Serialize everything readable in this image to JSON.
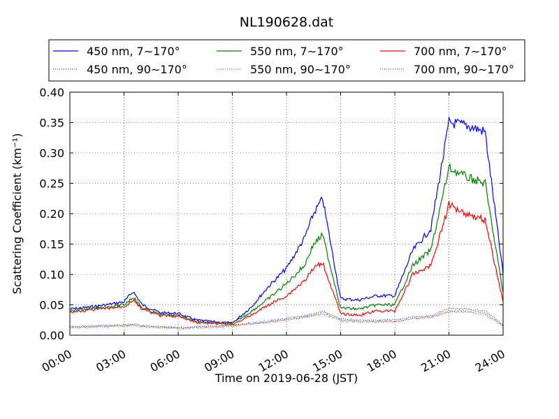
{
  "chart_data": {
    "type": "line",
    "title": "NL190628.dat",
    "xlabel": "Time on 2019-06-28 (JST)",
    "ylabel": "Scattering Coefficient (km⁻¹)",
    "ylim": [
      0,
      0.4
    ],
    "xlim": [
      "00:00",
      "24:00"
    ],
    "grid": true,
    "legend_position": "top",
    "x_ticks": [
      "00:00",
      "03:00",
      "06:00",
      "09:00",
      "12:00",
      "15:00",
      "18:00",
      "21:00",
      "24:00"
    ],
    "y_ticks": [
      "0.00",
      "0.05",
      "0.10",
      "0.15",
      "0.20",
      "0.25",
      "0.30",
      "0.35",
      "0.40"
    ],
    "x": [
      "00:00",
      "01:00",
      "02:00",
      "03:00",
      "03:30",
      "04:00",
      "05:00",
      "06:00",
      "06:30",
      "07:00",
      "08:00",
      "09:00",
      "10:00",
      "11:00",
      "12:00",
      "13:00",
      "13:30",
      "14:00",
      "15:00",
      "16:00",
      "17:00",
      "18:00",
      "19:00",
      "20:00",
      "21:00",
      "22:00",
      "23:00",
      "24:00"
    ],
    "series": [
      {
        "name": "450 nm, 7∼170°",
        "color": "#0000ff",
        "style": "solid",
        "values": [
          0.043,
          0.046,
          0.05,
          0.055,
          0.072,
          0.05,
          0.037,
          0.036,
          0.03,
          0.025,
          0.022,
          0.02,
          0.045,
          0.08,
          0.11,
          0.16,
          0.2,
          0.225,
          0.06,
          0.058,
          0.065,
          0.065,
          0.14,
          0.175,
          0.35,
          0.345,
          0.335,
          0.1
        ]
      },
      {
        "name": "450 nm, 90∼170°",
        "color": "#0000ff",
        "style": "dotted",
        "values": [
          0.014,
          0.015,
          0.016,
          0.017,
          0.018,
          0.016,
          0.014,
          0.013,
          0.013,
          0.014,
          0.015,
          0.017,
          0.02,
          0.023,
          0.028,
          0.032,
          0.035,
          0.04,
          0.027,
          0.025,
          0.025,
          0.025,
          0.03,
          0.032,
          0.044,
          0.043,
          0.04,
          0.018
        ]
      },
      {
        "name": "550 nm, 7∼170°",
        "color": "#008000",
        "style": "solid",
        "values": [
          0.04,
          0.043,
          0.046,
          0.05,
          0.063,
          0.045,
          0.034,
          0.033,
          0.028,
          0.023,
          0.02,
          0.019,
          0.038,
          0.06,
          0.085,
          0.115,
          0.15,
          0.165,
          0.045,
          0.043,
          0.05,
          0.05,
          0.115,
          0.14,
          0.275,
          0.26,
          0.25,
          0.07
        ]
      },
      {
        "name": "550 nm, 90∼170°",
        "color": "#008000",
        "style": "dotted",
        "values": [
          0.013,
          0.014,
          0.015,
          0.016,
          0.017,
          0.015,
          0.013,
          0.012,
          0.012,
          0.013,
          0.014,
          0.016,
          0.019,
          0.022,
          0.026,
          0.03,
          0.033,
          0.037,
          0.025,
          0.023,
          0.023,
          0.023,
          0.028,
          0.03,
          0.04,
          0.04,
          0.036,
          0.016
        ]
      },
      {
        "name": "700 nm, 7∼170°",
        "color": "#ff0000",
        "style": "solid",
        "values": [
          0.038,
          0.041,
          0.044,
          0.047,
          0.058,
          0.043,
          0.032,
          0.031,
          0.026,
          0.021,
          0.019,
          0.018,
          0.032,
          0.05,
          0.065,
          0.09,
          0.11,
          0.12,
          0.035,
          0.033,
          0.04,
          0.04,
          0.1,
          0.115,
          0.215,
          0.2,
          0.19,
          0.055
        ]
      },
      {
        "name": "700 nm, 90∼170°",
        "color": "#ff0000",
        "style": "dotted",
        "values": [
          0.012,
          0.013,
          0.014,
          0.015,
          0.016,
          0.014,
          0.012,
          0.011,
          0.011,
          0.012,
          0.013,
          0.015,
          0.018,
          0.021,
          0.025,
          0.029,
          0.032,
          0.035,
          0.024,
          0.022,
          0.022,
          0.022,
          0.027,
          0.029,
          0.038,
          0.038,
          0.034,
          0.015
        ]
      }
    ]
  }
}
